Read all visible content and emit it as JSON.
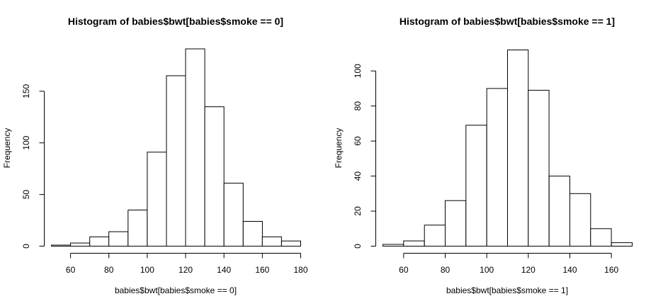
{
  "chart_data": [
    {
      "type": "bar",
      "title": "Histogram of babies$bwt[babies$smoke == 0]",
      "xlabel": "babies$bwt[babies$smoke == 0]",
      "ylabel": "Frequency",
      "xlim": [
        50,
        180
      ],
      "ylim": [
        0,
        190
      ],
      "bin_edges": [
        50,
        60,
        70,
        80,
        90,
        100,
        110,
        120,
        130,
        140,
        150,
        160,
        170,
        180
      ],
      "values": [
        1,
        3,
        9,
        14,
        35,
        91,
        165,
        191,
        135,
        61,
        24,
        9,
        5
      ],
      "x_ticks": [
        60,
        80,
        100,
        120,
        140,
        160,
        180
      ],
      "x_tick_labels": [
        "60",
        "80",
        "100",
        "120",
        "140",
        "160",
        "180"
      ],
      "y_ticks": [
        0,
        50,
        100,
        150
      ],
      "y_tick_labels": [
        "0",
        "50",
        "100",
        "150"
      ],
      "grid": false
    },
    {
      "type": "bar",
      "title": "Histogram of babies$bwt[babies$smoke == 1]",
      "xlabel": "babies$bwt[babies$smoke == 1]",
      "ylabel": "Frequency",
      "xlim": [
        50,
        170
      ],
      "ylim": [
        0,
        112
      ],
      "bin_edges": [
        50,
        60,
        70,
        80,
        90,
        100,
        110,
        120,
        130,
        140,
        150,
        160,
        170
      ],
      "values": [
        1,
        3,
        12,
        26,
        69,
        90,
        112,
        89,
        40,
        30,
        10,
        2
      ],
      "x_ticks": [
        60,
        80,
        100,
        120,
        140,
        160
      ],
      "x_tick_labels": [
        "60",
        "80",
        "100",
        "120",
        "140",
        "160"
      ],
      "y_ticks": [
        0,
        20,
        40,
        60,
        80,
        100
      ],
      "y_tick_labels": [
        "0",
        "20",
        "40",
        "60",
        "80",
        "100"
      ],
      "grid": false
    }
  ]
}
